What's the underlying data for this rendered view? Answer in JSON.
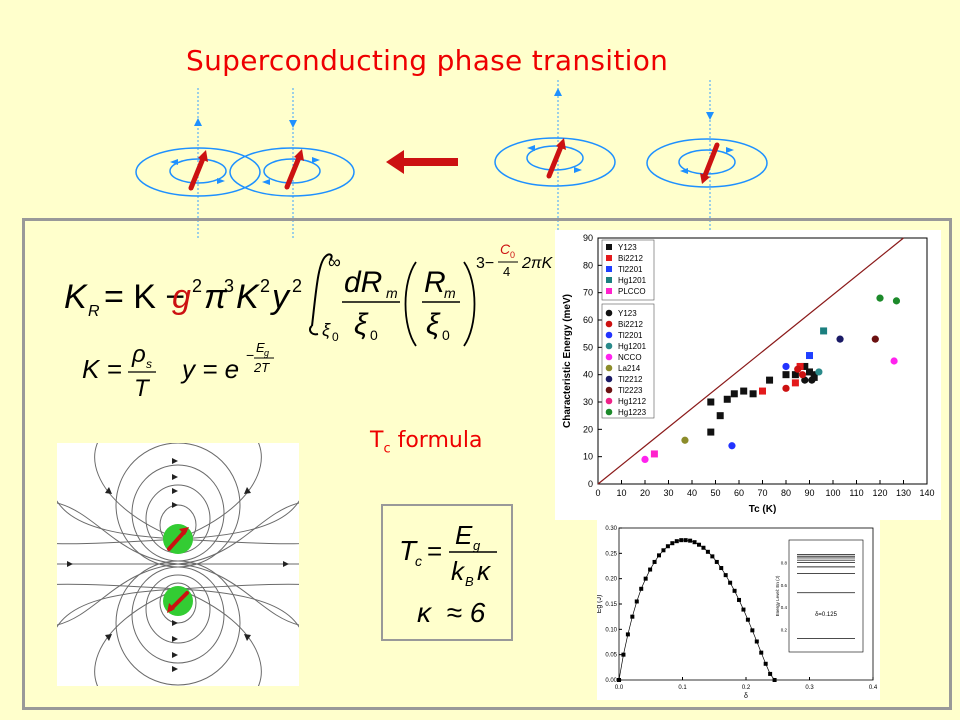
{
  "title": "Superconducting phase transition",
  "formula": {
    "main_lhs": "K",
    "main_lhs_sub": "R",
    "main_rhs1": "= K − ",
    "g_squared": "g",
    "two": "2",
    "pi3K2y2": "π",
    "three": "3",
    "K2": "K",
    "y2": "y",
    "integral_upper": "∞",
    "integral_lower": "ξ",
    "integral_lower_sub": "0",
    "dRm_num": "dR",
    "m": "m",
    "xi0_den": "ξ",
    "zero": "0",
    "paren_num": "R",
    "exponent_lead": "3−",
    "C0": "C",
    "C0_sub": "0",
    "four": "4",
    "two_pi_K": "2πK",
    "K_def_lhs": "K =",
    "rho": "ρ",
    "rho_sub": "s",
    "T": "T",
    "y_def_lhs": "y = e",
    "minus": "−",
    "Eg": "E",
    "g": "g",
    "twoT": "2T"
  },
  "tc_label": {
    "main": "T",
    "sub": "c",
    "rest": " formula"
  },
  "tc_box": {
    "lhs": "T",
    "lhs_sub": "c",
    "eq": "=",
    "num": "E",
    "num_sub": "g",
    "den": "k",
    "den_sub": "B",
    "den_kappa": "κ",
    "kappa_line": "κ  ≈ 6"
  },
  "chart_data": {
    "type": "scatter",
    "xlabel": "Tc (K)",
    "ylabel": "Characteristic Energy (meV)",
    "xlim": [
      0,
      140
    ],
    "ylim": [
      0,
      90
    ],
    "xticks": [
      0,
      10,
      20,
      30,
      40,
      50,
      60,
      70,
      80,
      90,
      100,
      110,
      120,
      130,
      140
    ],
    "yticks": [
      0,
      10,
      20,
      30,
      40,
      50,
      60,
      70,
      80,
      90
    ],
    "grid": false,
    "legend_position": "top-left",
    "fit_line": {
      "from": [
        0,
        0
      ],
      "to": [
        130,
        90
      ],
      "color": "#8b1a1a"
    },
    "legend_squares": [
      {
        "name": "Y123",
        "color": "#111111"
      },
      {
        "name": "Bi2212",
        "color": "#e41a1c"
      },
      {
        "name": "Tl2201",
        "color": "#1f3fff"
      },
      {
        "name": "Hg1201",
        "color": "#1b7f7f"
      },
      {
        "name": "PLCCO",
        "color": "#ff22cc"
      }
    ],
    "legend_circles": [
      {
        "name": "Y123",
        "color": "#111111"
      },
      {
        "name": "Bi2212",
        "color": "#cc1111"
      },
      {
        "name": "Tl2201",
        "color": "#2233ff"
      },
      {
        "name": "Hg1201",
        "color": "#2a8a8a"
      },
      {
        "name": "NCCO",
        "color": "#ff22ee"
      },
      {
        "name": "La214",
        "color": "#8c8c2a"
      },
      {
        "name": "Tl2212",
        "color": "#1a1a66"
      },
      {
        "name": "Tl2223",
        "color": "#6b1010"
      },
      {
        "name": "Hg1212",
        "color": "#ee2288"
      },
      {
        "name": "Hg1223",
        "color": "#1c8a2a"
      }
    ],
    "series": [
      {
        "marker": "square",
        "color": "#111111",
        "points": [
          [
            48,
            30
          ],
          [
            52,
            25
          ],
          [
            55,
            31
          ],
          [
            58,
            33
          ],
          [
            62,
            34
          ],
          [
            66,
            33
          ],
          [
            73,
            38
          ],
          [
            80,
            40
          ],
          [
            84,
            40
          ],
          [
            88,
            43
          ],
          [
            90,
            41
          ],
          [
            92,
            39
          ],
          [
            48,
            19
          ]
        ]
      },
      {
        "marker": "square",
        "color": "#e41a1c",
        "points": [
          [
            70,
            34
          ],
          [
            84,
            37
          ],
          [
            86,
            43
          ]
        ]
      },
      {
        "marker": "square",
        "color": "#1f3fff",
        "points": [
          [
            90,
            47
          ]
        ]
      },
      {
        "marker": "square",
        "color": "#1b7f7f",
        "points": [
          [
            96,
            56
          ]
        ]
      },
      {
        "marker": "square",
        "color": "#ff22cc",
        "points": [
          [
            24,
            11
          ]
        ]
      },
      {
        "marker": "circle",
        "color": "#111111",
        "points": [
          [
            88,
            38
          ],
          [
            91,
            38
          ],
          [
            92,
            40
          ]
        ]
      },
      {
        "marker": "circle",
        "color": "#cc1111",
        "points": [
          [
            80,
            35
          ],
          [
            85,
            42
          ],
          [
            87,
            40
          ]
        ]
      },
      {
        "marker": "circle",
        "color": "#2233ff",
        "points": [
          [
            57,
            14
          ],
          [
            80,
            43
          ]
        ]
      },
      {
        "marker": "circle",
        "color": "#2a8a8a",
        "points": [
          [
            94,
            41
          ]
        ]
      },
      {
        "marker": "circle",
        "color": "#ff22ee",
        "points": [
          [
            20,
            9
          ],
          [
            126,
            45
          ]
        ]
      },
      {
        "marker": "circle",
        "color": "#8c8c2a",
        "points": [
          [
            37,
            16
          ]
        ]
      },
      {
        "marker": "circle",
        "color": "#1a1a66",
        "points": [
          [
            103,
            53
          ]
        ]
      },
      {
        "marker": "circle",
        "color": "#6b1010",
        "points": [
          [
            118,
            53
          ]
        ]
      },
      {
        "marker": "circle",
        "color": "#1c8a2a",
        "points": [
          [
            120,
            68
          ],
          [
            127,
            67
          ]
        ]
      }
    ]
  },
  "gap_chart": {
    "xlabel": "δ",
    "ylabel": "E",
    "ylabel_sub": "g",
    "ylabel_unit": "(J)",
    "xticks": [
      "0.0",
      "0.1",
      "0.2",
      "0.3",
      "0.4"
    ],
    "yticks": [
      "0.00",
      "0.05",
      "0.10",
      "0.15",
      "0.20",
      "0.25",
      "0.30"
    ],
    "xlim": [
      0,
      0.4
    ],
    "ylim": [
      0,
      0.3
    ],
    "points": [
      [
        0.0,
        0.0
      ],
      [
        0.007,
        0.05
      ],
      [
        0.014,
        0.09
      ],
      [
        0.021,
        0.125
      ],
      [
        0.028,
        0.155
      ],
      [
        0.035,
        0.18
      ],
      [
        0.042,
        0.2
      ],
      [
        0.049,
        0.218
      ],
      [
        0.056,
        0.233
      ],
      [
        0.063,
        0.246
      ],
      [
        0.07,
        0.256
      ],
      [
        0.077,
        0.264
      ],
      [
        0.084,
        0.27
      ],
      [
        0.091,
        0.274
      ],
      [
        0.098,
        0.276
      ],
      [
        0.105,
        0.276
      ],
      [
        0.112,
        0.275
      ],
      [
        0.119,
        0.272
      ],
      [
        0.126,
        0.267
      ],
      [
        0.133,
        0.261
      ],
      [
        0.14,
        0.253
      ],
      [
        0.147,
        0.244
      ],
      [
        0.154,
        0.233
      ],
      [
        0.161,
        0.221
      ],
      [
        0.168,
        0.207
      ],
      [
        0.175,
        0.192
      ],
      [
        0.182,
        0.176
      ],
      [
        0.189,
        0.158
      ],
      [
        0.196,
        0.139
      ],
      [
        0.203,
        0.119
      ],
      [
        0.21,
        0.098
      ],
      [
        0.217,
        0.076
      ],
      [
        0.224,
        0.054
      ],
      [
        0.231,
        0.032
      ],
      [
        0.238,
        0.012
      ],
      [
        0.245,
        0.0
      ]
    ],
    "inset": {
      "ylabel": "Energy Level: E",
      "ylabel_sub": "n",
      "ylabel_unit": "(J)",
      "yticks": [
        "0.2",
        "0.4",
        "0.6",
        "0.8"
      ],
      "label": "δ=0.125",
      "levels": [
        0.12,
        0.53,
        0.7,
        0.76,
        0.8,
        0.82,
        0.84,
        0.855,
        0.87
      ]
    }
  }
}
